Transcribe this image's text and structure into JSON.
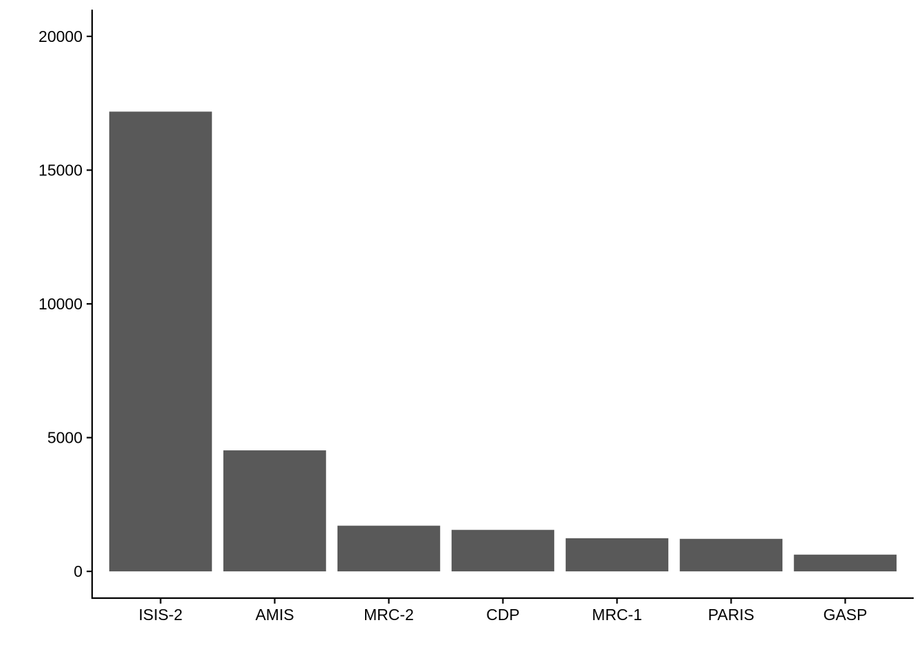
{
  "chart_data": {
    "type": "bar",
    "title": "",
    "xlabel": "",
    "ylabel": "",
    "categories": [
      "ISIS-2",
      "AMIS",
      "MRC-2",
      "CDP",
      "MRC-1",
      "PARIS",
      "GASP"
    ],
    "values": [
      17187,
      4524,
      1708,
      1552,
      1239,
      1216,
      626
    ],
    "ylim": [
      -1000,
      21000
    ],
    "y_ticks": [
      0,
      5000,
      10000,
      15000,
      20000
    ],
    "y_tick_labels": [
      "0",
      "5000",
      "10000",
      "15000",
      "20000"
    ],
    "grid": false,
    "legend": "none",
    "bar_color": "#595959"
  }
}
